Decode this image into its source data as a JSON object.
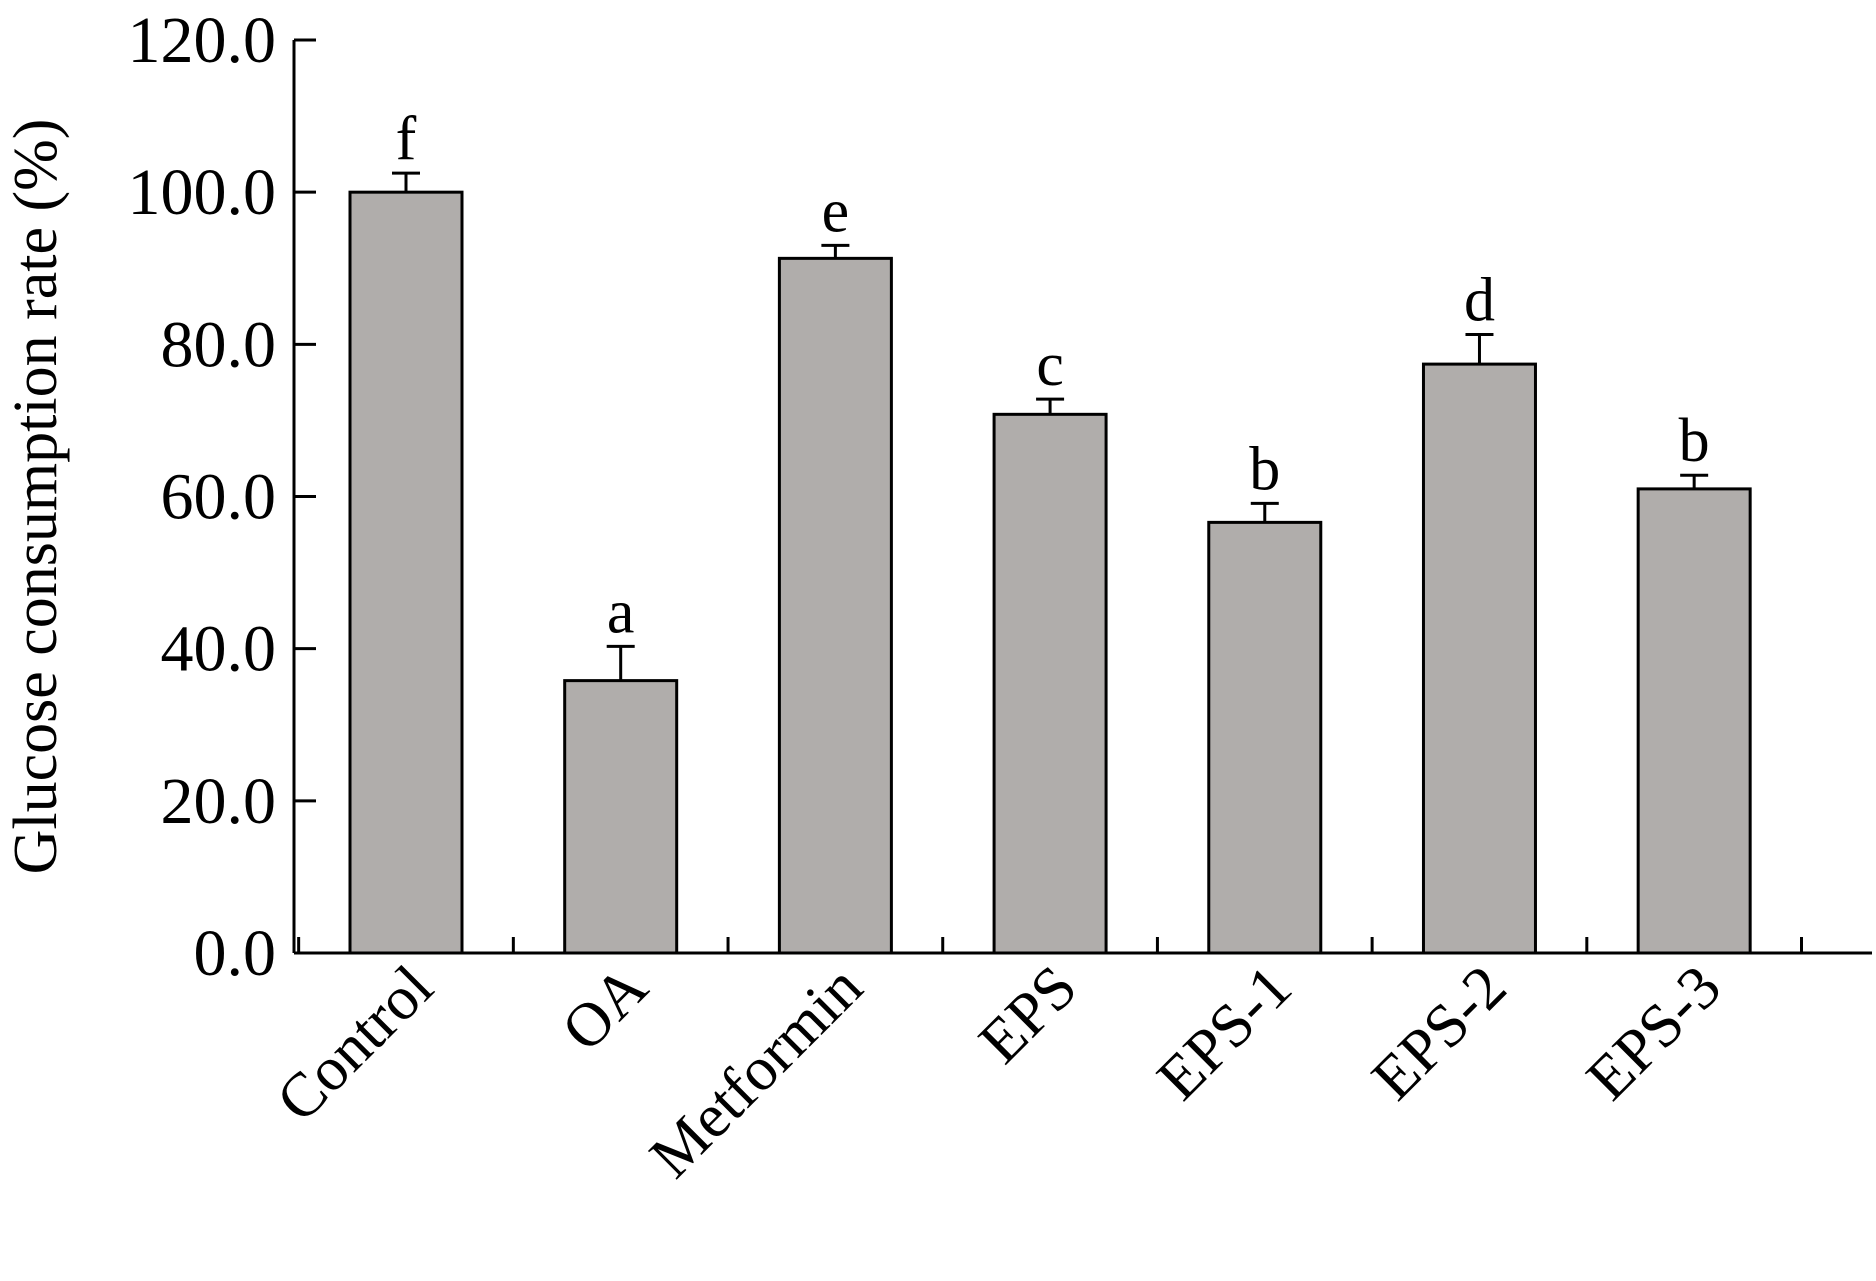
{
  "chart_data": {
    "type": "bar",
    "title": "",
    "xlabel": "",
    "ylabel": "Glucose consumption rate (%)",
    "ylim": [
      0,
      120
    ],
    "yticks": [
      "0.0",
      "20.0",
      "40.0",
      "60.0",
      "80.0",
      "100.0",
      "120.0"
    ],
    "categories": [
      "Control",
      "OA",
      "Metformin",
      "EPS",
      "EPS-1",
      "EPS-2",
      "EPS-3"
    ],
    "values": [
      100.0,
      35.8,
      91.3,
      70.8,
      56.6,
      77.4,
      61.0
    ],
    "errors": [
      2.5,
      4.5,
      1.7,
      2.0,
      2.5,
      3.9,
      1.8
    ],
    "significance": [
      "f",
      "a",
      "e",
      "c",
      "b",
      "d",
      "b"
    ],
    "bar_color": "#b0adab",
    "grid": false,
    "legend": "none"
  }
}
